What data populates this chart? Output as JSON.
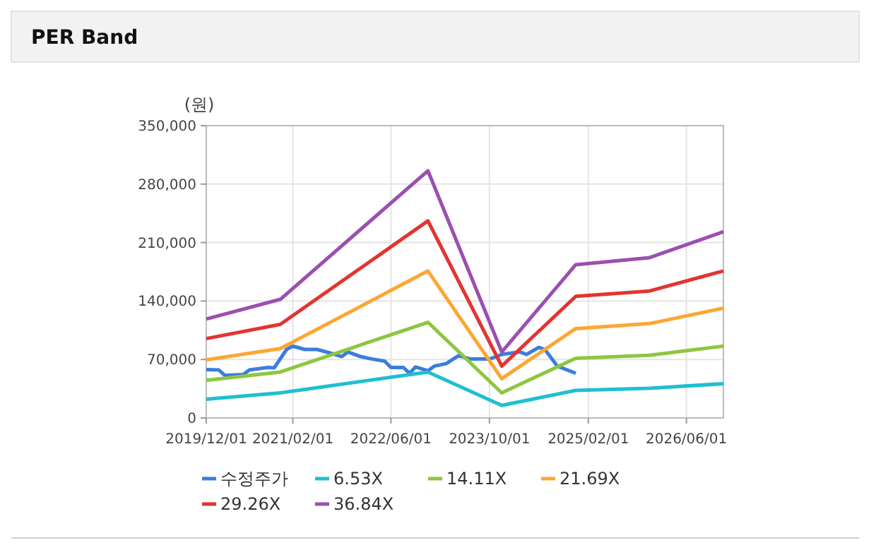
{
  "chart_data": {
    "type": "line",
    "title": "PER Band",
    "ylabel": "(원)",
    "xlim": [
      "2019-12",
      "2026-12"
    ],
    "xticks": [
      {
        "value": "2019-12",
        "label": "2019/12/01"
      },
      {
        "value": "2021-02",
        "label": "2021/02/01"
      },
      {
        "value": "2022-06",
        "label": "2022/06/01"
      },
      {
        "value": "2023-10",
        "label": "2023/10/01"
      },
      {
        "value": "2025-02",
        "label": "2025/02/01"
      },
      {
        "value": "2026-06",
        "label": "2026/06/01"
      }
    ],
    "ylim": [
      0,
      350000
    ],
    "yticks": [
      {
        "value": 0,
        "label": "0"
      },
      {
        "value": 70000,
        "label": "70,000"
      },
      {
        "value": 140000,
        "label": "140,000"
      },
      {
        "value": 210000,
        "label": "210,000"
      },
      {
        "value": 280000,
        "label": "280,000"
      },
      {
        "value": 350000,
        "label": "350,000"
      }
    ],
    "grid": true,
    "legend": "bottom",
    "marker": "none",
    "line_style": "solid",
    "series": [
      {
        "name": "수정주가",
        "color": "#3b7ddd",
        "x": [
          "2019-12",
          "2020-02",
          "2020-03",
          "2020-06",
          "2020-07",
          "2020-10",
          "2020-11",
          "2021-01",
          "2021-02",
          "2021-04",
          "2021-06",
          "2021-08",
          "2021-10",
          "2021-11",
          "2022-01",
          "2022-03",
          "2022-05",
          "2022-06",
          "2022-08",
          "2022-09",
          "2022-10",
          "2022-12",
          "2023-01",
          "2023-03",
          "2023-05",
          "2023-07",
          "2023-10",
          "2023-12",
          "2024-03",
          "2024-04",
          "2024-06",
          "2024-07",
          "2024-09",
          "2024-12"
        ],
        "values": [
          58000,
          57500,
          51000,
          52000,
          57500,
          60500,
          60000,
          82000,
          86000,
          82000,
          82000,
          78000,
          73500,
          79000,
          73500,
          70500,
          68000,
          60500,
          60500,
          53500,
          61000,
          56500,
          62000,
          65000,
          74500,
          70500,
          70500,
          76000,
          79000,
          76000,
          84500,
          82000,
          62000,
          53500
        ]
      },
      {
        "name": "6.53X",
        "color": "#1fbfd0",
        "x": [
          "2019-12",
          "2020-12",
          "2022-12",
          "2023-12",
          "2024-12",
          "2025-12",
          "2026-12"
        ],
        "values": [
          22500,
          30000,
          55000,
          15000,
          33000,
          35500,
          41000
        ]
      },
      {
        "name": "14.11X",
        "color": "#8dc63f",
        "x": [
          "2019-12",
          "2020-12",
          "2022-12",
          "2023-12",
          "2024-12",
          "2025-12",
          "2026-12"
        ],
        "values": [
          45000,
          55000,
          114500,
          30000,
          71500,
          75000,
          86000
        ]
      },
      {
        "name": "21.69X",
        "color": "#fda633",
        "x": [
          "2019-12",
          "2020-12",
          "2022-12",
          "2023-12",
          "2024-12",
          "2025-12",
          "2026-12"
        ],
        "values": [
          69500,
          83000,
          176000,
          47000,
          107000,
          113000,
          131500
        ]
      },
      {
        "name": "29.26X",
        "color": "#e3342f",
        "x": [
          "2019-12",
          "2020-12",
          "2022-12",
          "2023-12",
          "2024-12",
          "2025-12",
          "2026-12"
        ],
        "values": [
          95000,
          112000,
          236000,
          62000,
          145600,
          152000,
          176000
        ]
      },
      {
        "name": "36.84X",
        "color": "#9b4fb0",
        "x": [
          "2019-12",
          "2020-12",
          "2022-12",
          "2023-12",
          "2024-12",
          "2025-12",
          "2026-12"
        ],
        "values": [
          118500,
          142000,
          296000,
          79000,
          183500,
          192000,
          223000
        ]
      }
    ]
  }
}
